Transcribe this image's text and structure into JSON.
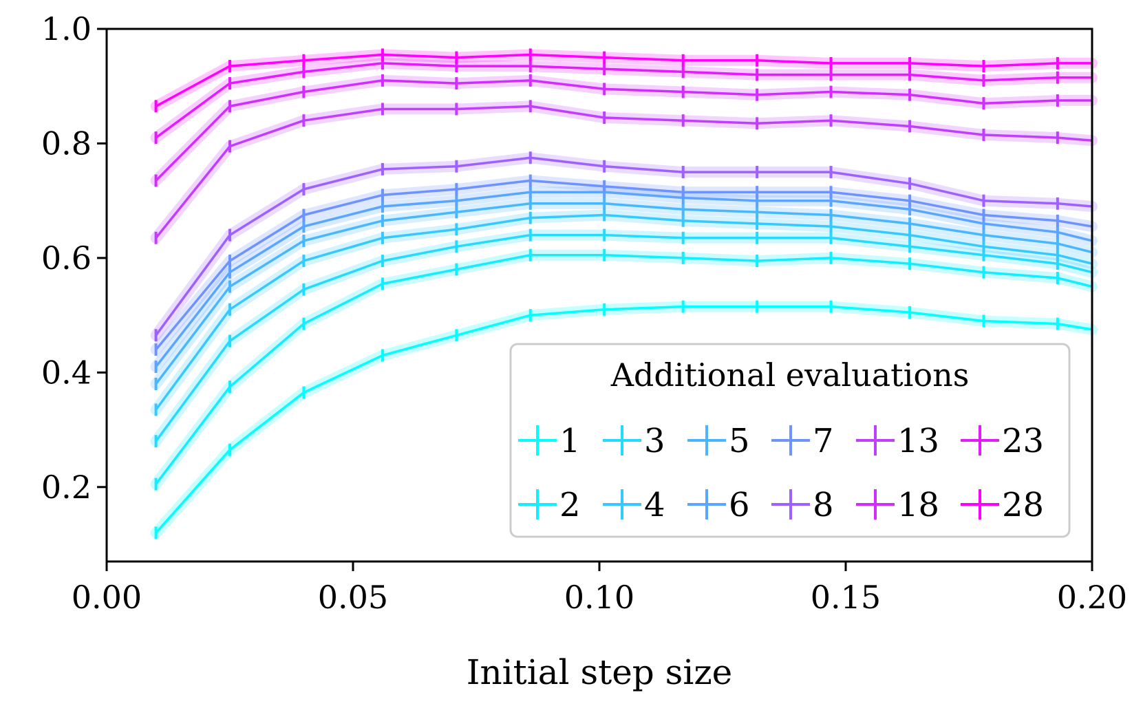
{
  "chart_data": {
    "type": "line",
    "xlabel": "Initial step size",
    "ylabel": "",
    "xlim": [
      0.0,
      0.2
    ],
    "ylim": [
      0.07,
      1.0
    ],
    "xticks": [
      0.0,
      0.05,
      0.1,
      0.15,
      0.2
    ],
    "xtick_labels": [
      "0.00",
      "0.05",
      "0.10",
      "0.15",
      "0.20"
    ],
    "yticks": [
      0.2,
      0.4,
      0.6,
      0.8,
      1.0
    ],
    "ytick_labels": [
      "0.2",
      "0.4",
      "0.6",
      "0.8",
      "1.0"
    ],
    "legend": {
      "title": "Additional evaluations",
      "position": "lower-right",
      "columns": 6
    },
    "x": [
      0.01,
      0.025,
      0.04,
      0.056,
      0.071,
      0.086,
      0.101,
      0.117,
      0.132,
      0.147,
      0.163,
      0.178,
      0.193,
      0.2
    ],
    "series": [
      {
        "name": "1",
        "color": "#00ffff",
        "values": [
          0.12,
          0.265,
          0.365,
          0.43,
          0.465,
          0.5,
          0.51,
          0.515,
          0.515,
          0.515,
          0.505,
          0.49,
          0.485,
          0.475
        ]
      },
      {
        "name": "2",
        "color": "#12edff",
        "values": [
          0.205,
          0.375,
          0.485,
          0.555,
          0.58,
          0.605,
          0.605,
          0.6,
          0.595,
          0.6,
          0.59,
          0.575,
          0.565,
          0.55
        ]
      },
      {
        "name": "3",
        "color": "#24dbff",
        "values": [
          0.28,
          0.455,
          0.545,
          0.595,
          0.62,
          0.64,
          0.64,
          0.635,
          0.635,
          0.635,
          0.62,
          0.605,
          0.59,
          0.575
        ]
      },
      {
        "name": "4",
        "color": "#36c9ff",
        "values": [
          0.335,
          0.51,
          0.595,
          0.635,
          0.65,
          0.67,
          0.675,
          0.665,
          0.66,
          0.655,
          0.64,
          0.62,
          0.605,
          0.59
        ]
      },
      {
        "name": "5",
        "color": "#48b7ff",
        "values": [
          0.38,
          0.55,
          0.63,
          0.665,
          0.68,
          0.695,
          0.695,
          0.685,
          0.68,
          0.675,
          0.66,
          0.64,
          0.625,
          0.61
        ]
      },
      {
        "name": "6",
        "color": "#5aa5ff",
        "values": [
          0.41,
          0.575,
          0.655,
          0.69,
          0.7,
          0.715,
          0.715,
          0.705,
          0.7,
          0.7,
          0.685,
          0.66,
          0.645,
          0.63
        ]
      },
      {
        "name": "7",
        "color": "#6c93ff",
        "values": [
          0.44,
          0.595,
          0.675,
          0.71,
          0.72,
          0.735,
          0.725,
          0.715,
          0.715,
          0.715,
          0.7,
          0.675,
          0.665,
          0.655
        ]
      },
      {
        "name": "8",
        "color": "#9e61ff",
        "values": [
          0.465,
          0.64,
          0.72,
          0.755,
          0.76,
          0.775,
          0.76,
          0.75,
          0.75,
          0.75,
          0.73,
          0.7,
          0.695,
          0.69
        ]
      },
      {
        "name": "13",
        "color": "#c03fff",
        "values": [
          0.635,
          0.795,
          0.84,
          0.86,
          0.86,
          0.865,
          0.845,
          0.84,
          0.835,
          0.84,
          0.83,
          0.815,
          0.81,
          0.805
        ]
      },
      {
        "name": "18",
        "color": "#d22dff",
        "values": [
          0.735,
          0.865,
          0.89,
          0.91,
          0.905,
          0.91,
          0.895,
          0.89,
          0.885,
          0.89,
          0.885,
          0.87,
          0.875,
          0.875
        ]
      },
      {
        "name": "23",
        "color": "#e41bff",
        "values": [
          0.81,
          0.905,
          0.925,
          0.94,
          0.935,
          0.935,
          0.93,
          0.925,
          0.92,
          0.92,
          0.92,
          0.91,
          0.915,
          0.915
        ]
      },
      {
        "name": "28",
        "color": "#ff00ff",
        "values": [
          0.865,
          0.935,
          0.945,
          0.955,
          0.95,
          0.955,
          0.95,
          0.945,
          0.945,
          0.94,
          0.94,
          0.935,
          0.94,
          0.94
        ]
      }
    ]
  }
}
